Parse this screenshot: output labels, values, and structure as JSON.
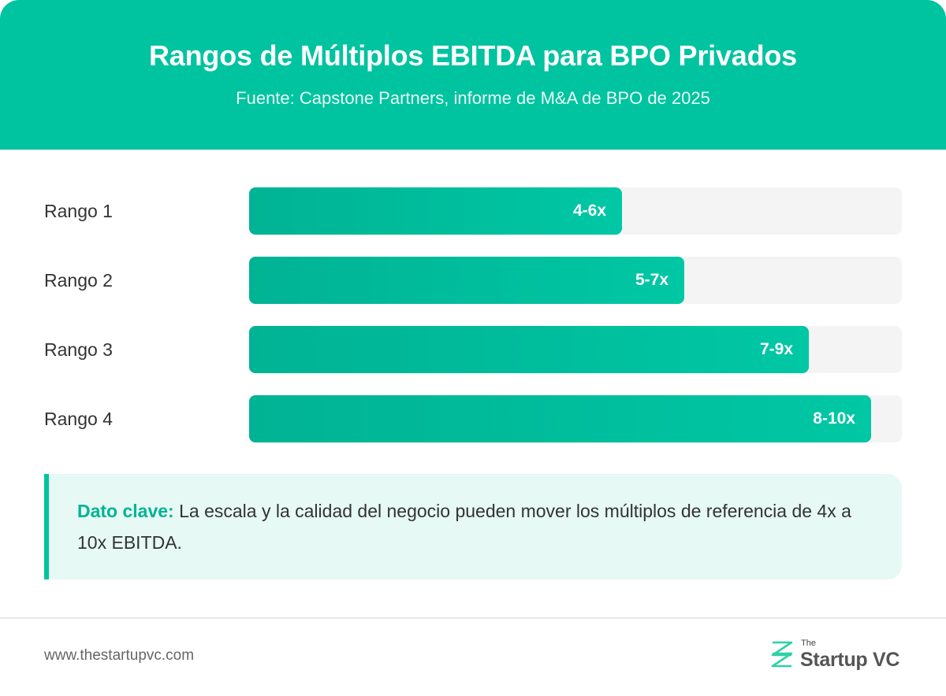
{
  "header": {
    "title": "Rangos de Múltiplos EBITDA para BPO Privados",
    "subtitle": "Fuente: Capstone Partners, informe de M&A de BPO de 2025"
  },
  "chart_data": {
    "type": "bar",
    "orientation": "horizontal",
    "title": "Rangos de Múltiplos EBITDA para BPO Privados",
    "subtitle": "Fuente: Capstone Partners, informe de M&A de BPO de 2025",
    "categories": [
      "Rango 1",
      "Rango 2",
      "Rango 3",
      "Rango 4"
    ],
    "value_labels": [
      "4-6x",
      "5-7x",
      "7-9x",
      "8-10x"
    ],
    "ranges": [
      [
        4,
        6
      ],
      [
        5,
        7
      ],
      [
        7,
        9
      ],
      [
        8,
        10
      ]
    ],
    "values": [
      6,
      7,
      9,
      10
    ],
    "xlim": [
      0,
      10.5
    ],
    "grid": false,
    "bar_color": "#00c3a0",
    "track_color": "#f4f4f4"
  },
  "note": {
    "key_label": "Dato clave:",
    "text": " La escala y la calidad del negocio pueden mover los múltiplos de referencia de 4x a 10x EBITDA."
  },
  "footer": {
    "url": "www.thestartupvc.com",
    "brand_small": "The",
    "brand_name": "Startup VC",
    "brand_icon": "startupvc-logo-icon"
  },
  "colors": {
    "accent": "#00c3a0",
    "note_bg": "#e6f9f4"
  }
}
